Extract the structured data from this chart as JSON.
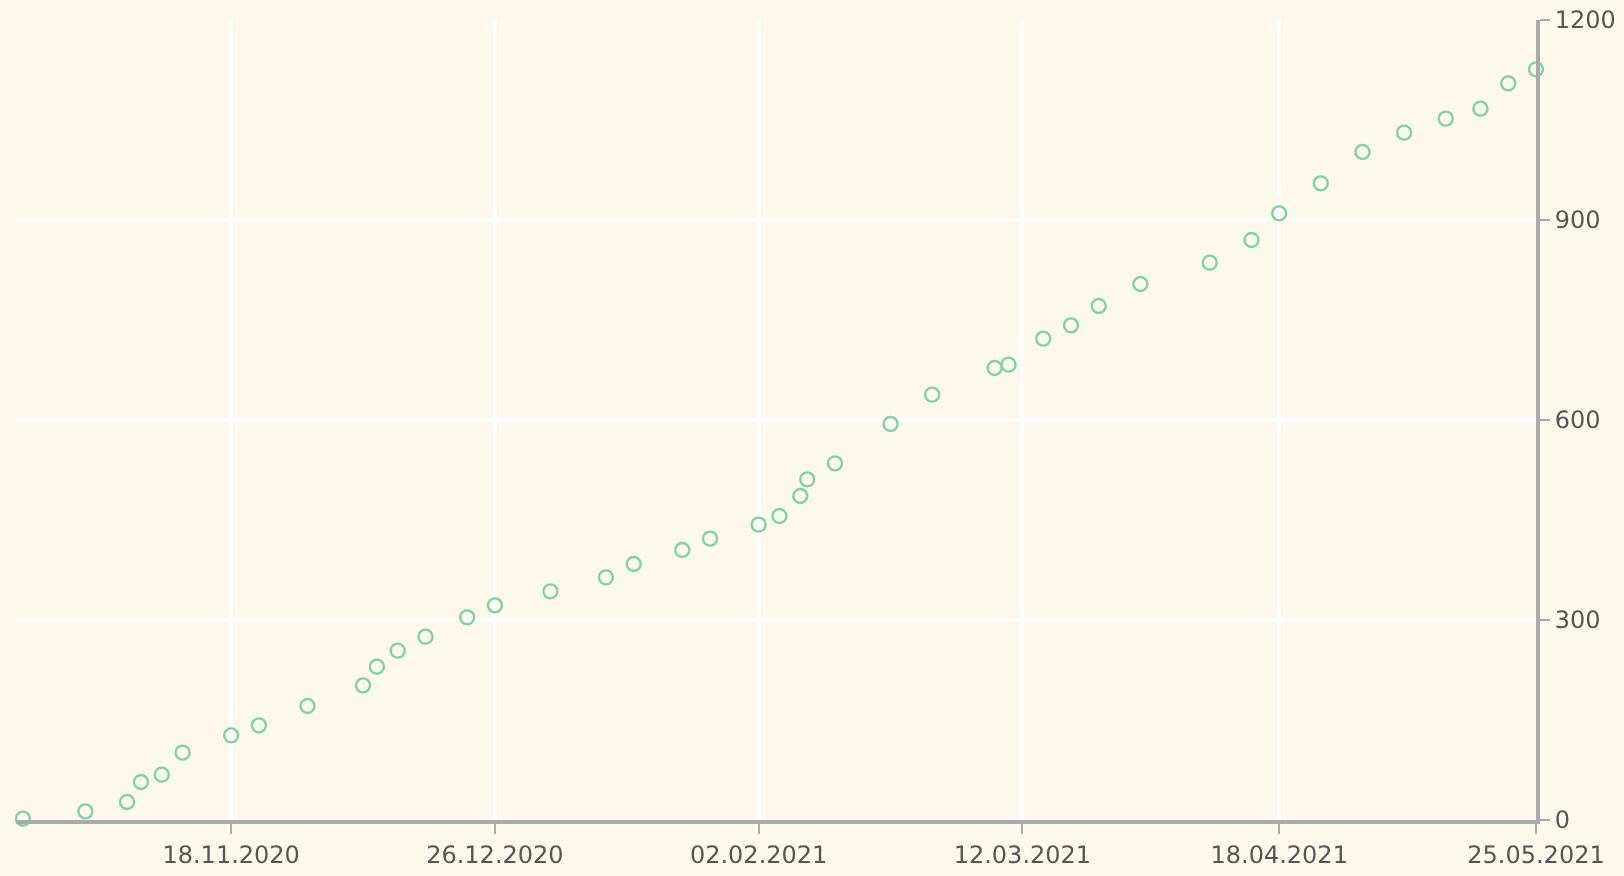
{
  "chart_data": {
    "type": "scatter",
    "marker": "circle",
    "grid": true,
    "x": [
      "2020-10-19",
      "2020-10-28",
      "2020-11-03",
      "2020-11-05",
      "2020-11-08",
      "2020-11-11",
      "2020-11-18",
      "2020-11-22",
      "2020-11-29",
      "2020-12-07",
      "2020-12-09",
      "2020-12-12",
      "2020-12-16",
      "2020-12-22",
      "2020-12-26",
      "2021-01-03",
      "2021-01-11",
      "2021-01-15",
      "2021-01-22",
      "2021-01-26",
      "2021-02-02",
      "2021-02-05",
      "2021-02-08",
      "2021-02-09",
      "2021-02-13",
      "2021-02-21",
      "2021-02-27",
      "2021-03-08",
      "2021-03-10",
      "2021-03-15",
      "2021-03-19",
      "2021-03-23",
      "2021-03-29",
      "2021-04-08",
      "2021-04-14",
      "2021-04-18",
      "2021-04-24",
      "2021-04-30",
      "2021-05-06",
      "2021-05-12",
      "2021-05-17",
      "2021-05-21",
      "2021-05-25"
    ],
    "series": [
      {
        "color": "#7fd1a8",
        "values": [
          2,
          13,
          27,
          57,
          68,
          101,
          127,
          142,
          171,
          202,
          230,
          254,
          275,
          304,
          322,
          343,
          364,
          384,
          405,
          422,
          443,
          456,
          486,
          511,
          535,
          594,
          638,
          678,
          683,
          722,
          742,
          771,
          804,
          836,
          870,
          910,
          955,
          1002,
          1031,
          1052,
          1067,
          1105,
          1126
        ]
      }
    ],
    "xlim": [
      "2020-10-18",
      "2021-05-25"
    ],
    "xticks": [
      {
        "value": "2020-11-18",
        "label": "18.11.2020"
      },
      {
        "value": "2020-12-26",
        "label": "26.12.2020"
      },
      {
        "value": "2021-02-02",
        "label": "02.02.2021"
      },
      {
        "value": "2021-03-12",
        "label": "12.03.2021"
      },
      {
        "value": "2021-04-18",
        "label": "18.04.2021"
      },
      {
        "value": "2021-05-25",
        "label": "25.05.2021"
      }
    ],
    "ylim": [
      0,
      1200
    ],
    "yticks": [
      0,
      300,
      600,
      900,
      1200
    ]
  }
}
